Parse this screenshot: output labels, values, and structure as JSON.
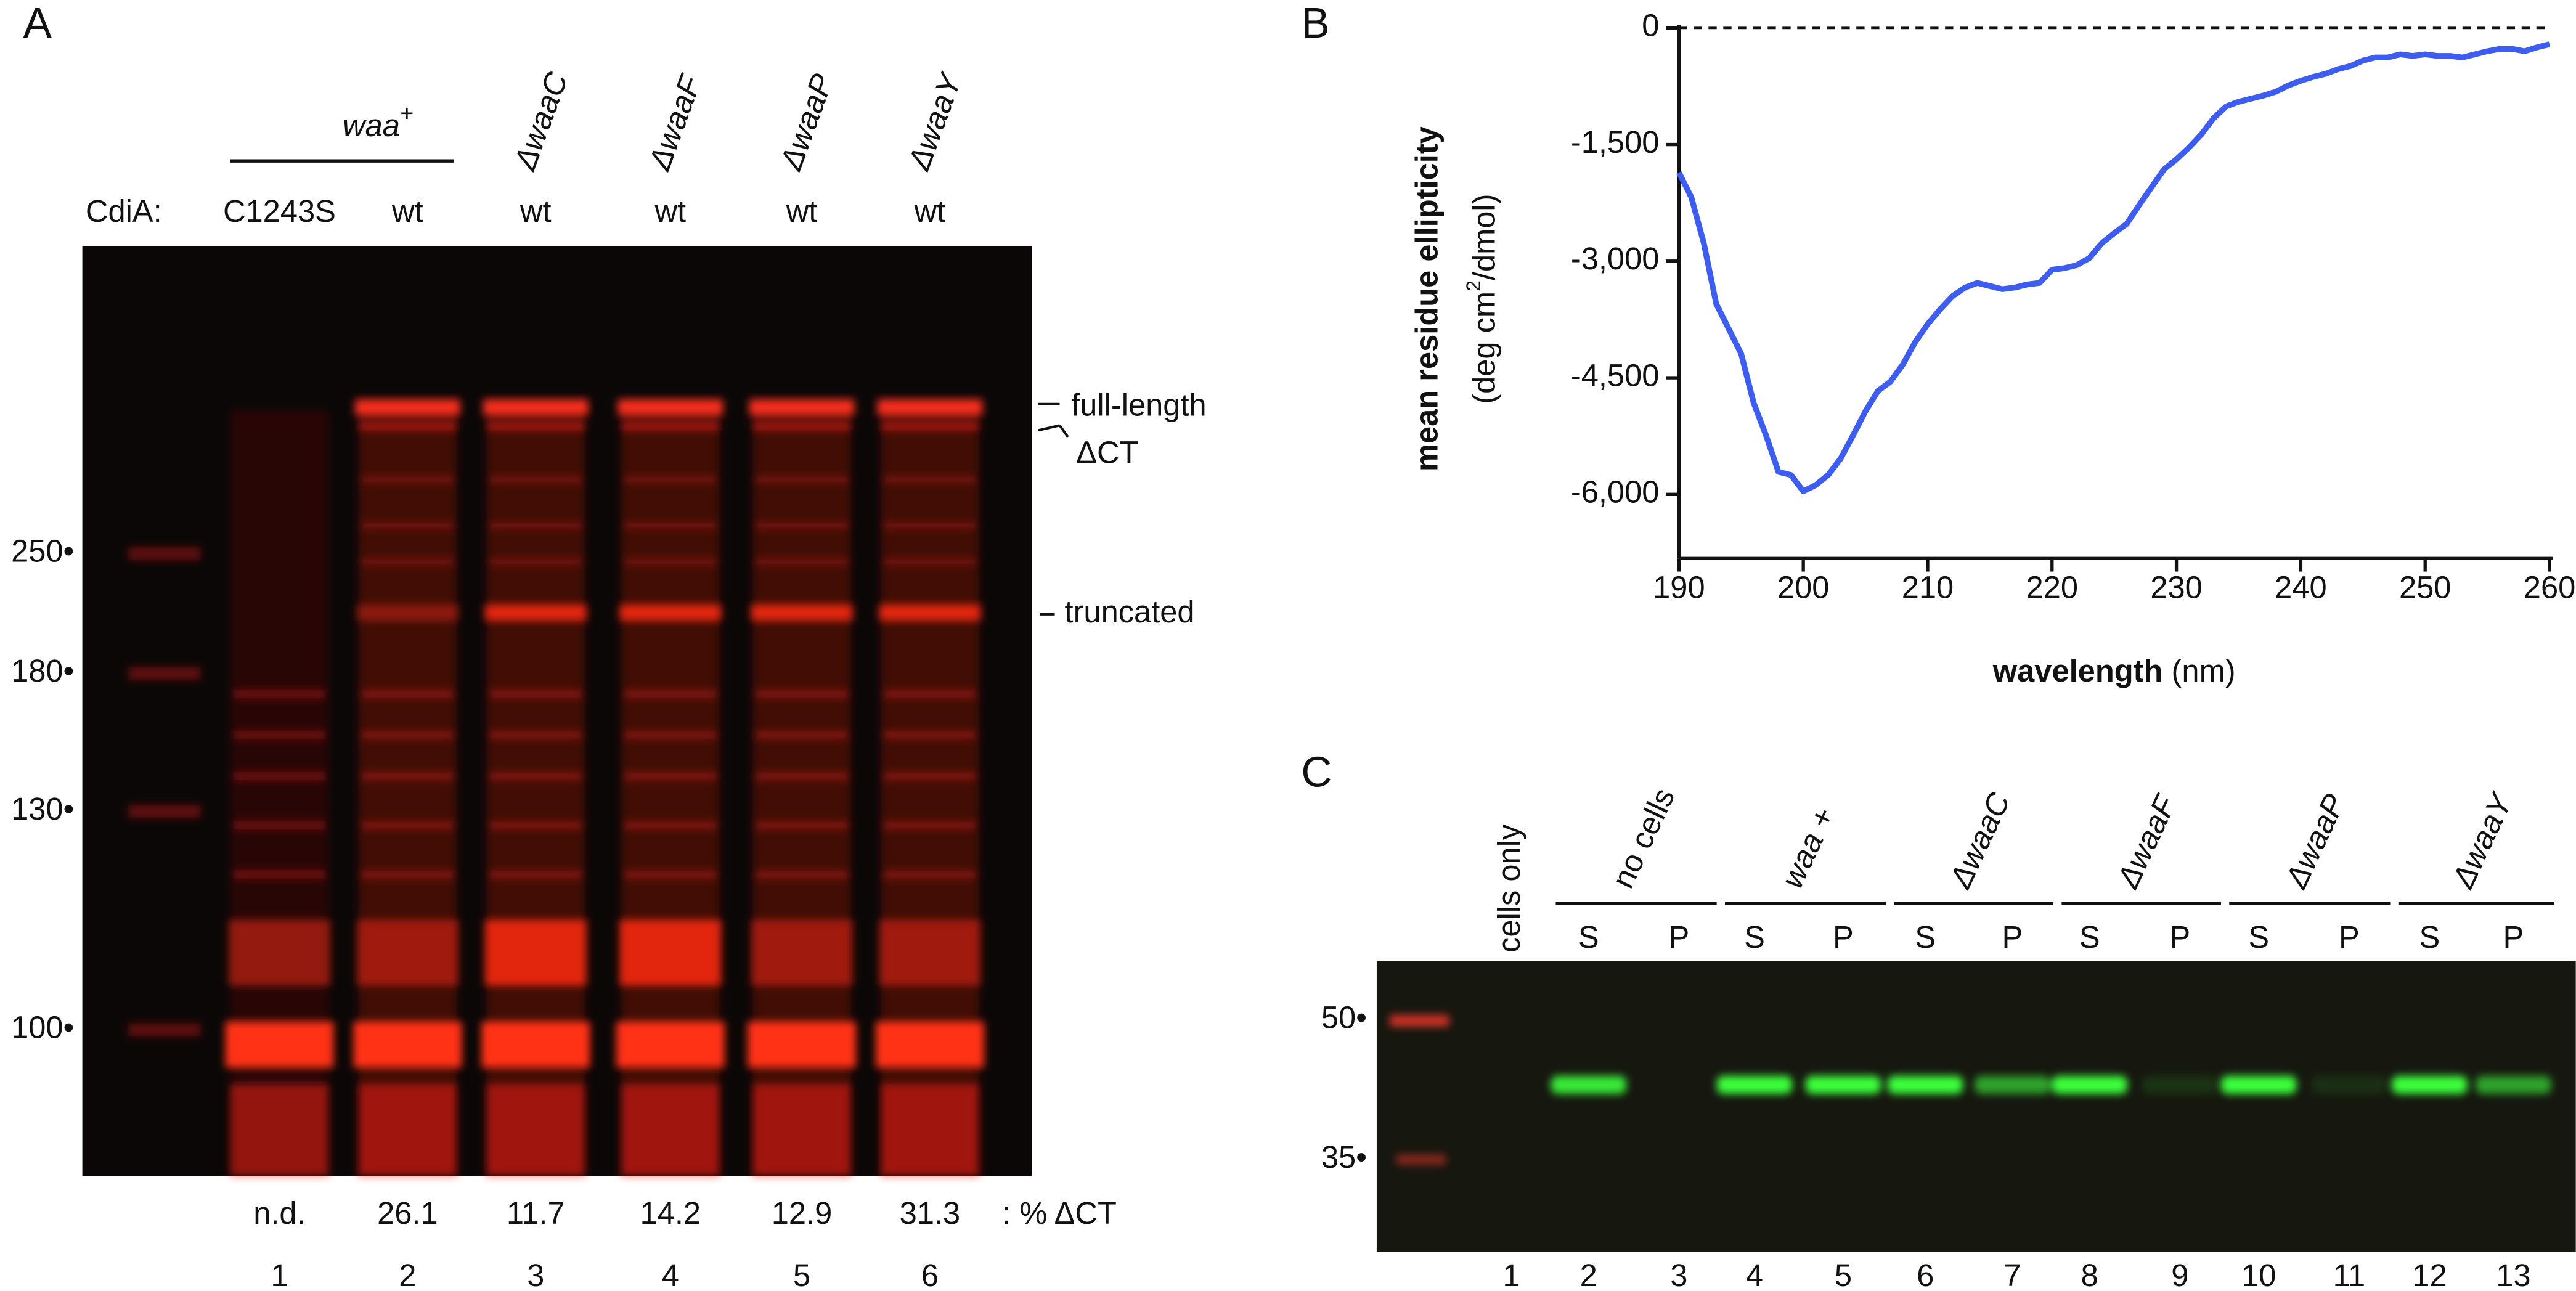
{
  "panel_labels": [
    "A",
    "B",
    "C"
  ],
  "panel_a": {
    "strain_label": "waa",
    "strain_sup": "+",
    "row_label": "CdiA:",
    "cdia": [
      "C1243S",
      "wt",
      "wt",
      "wt",
      "wt",
      "wt"
    ],
    "genotypes": [
      "ΔwaaC",
      "ΔwaaF",
      "ΔwaaP",
      "ΔwaaY"
    ],
    "markers": [
      "250•",
      "180•",
      "130•",
      "100•"
    ],
    "band_labels": [
      "full-length",
      "ΔCT",
      "truncated"
    ],
    "percent_ct": [
      "n.d.",
      "26.1",
      "11.7",
      "14.2",
      "12.9",
      "31.3"
    ],
    "percent_label": ": % ΔCT",
    "lanes": [
      "1",
      "2",
      "3",
      "4",
      "5",
      "6"
    ]
  },
  "chart_data": {
    "type": "line",
    "x_label": "wavelength",
    "x_unit": "(nm)",
    "y_label": "mean residue ellipticity",
    "y_unit_pre": "(deg cm",
    "y_unit_sup": "2",
    "y_unit_post": "/dmol)",
    "color": "#3d5cf0",
    "reference_line": 0,
    "xlim": [
      190,
      260
    ],
    "xticks": [
      190,
      200,
      210,
      220,
      230,
      240,
      250,
      260
    ],
    "ylim": [
      -6750,
      0
    ],
    "yticks": [
      0,
      {
        "value": -1500,
        "label": "-1,500"
      },
      {
        "value": -3000,
        "label": "-3,000"
      },
      {
        "value": -4500,
        "label": "-4,500"
      },
      {
        "value": -6000,
        "label": "-6,000"
      }
    ],
    "x": [
      190,
      191,
      192,
      193,
      194,
      195,
      196,
      197,
      198,
      199,
      200,
      201,
      202,
      203,
      204,
      205,
      206,
      207,
      208,
      209,
      210,
      211,
      212,
      213,
      214,
      215,
      216,
      217,
      218,
      219,
      220,
      221,
      222,
      223,
      224,
      225,
      226,
      227,
      228,
      229,
      230,
      231,
      232,
      233,
      234,
      235,
      236,
      237,
      238,
      239,
      240,
      241,
      242,
      243,
      244,
      245,
      246,
      247,
      248,
      249,
      250,
      251,
      252,
      253,
      254,
      255,
      256,
      257,
      258,
      259,
      260
    ],
    "values": [
      -1860,
      -2180,
      -2770,
      -3550,
      -3870,
      -4190,
      -4820,
      -5240,
      -5710,
      -5750,
      -5960,
      -5880,
      -5750,
      -5540,
      -5240,
      -4930,
      -4670,
      -4550,
      -4330,
      -4040,
      -3810,
      -3620,
      -3450,
      -3340,
      -3280,
      -3320,
      -3360,
      -3340,
      -3300,
      -3280,
      -3110,
      -3090,
      -3050,
      -2960,
      -2770,
      -2640,
      -2520,
      -2280,
      -2050,
      -1820,
      -1690,
      -1540,
      -1370,
      -1160,
      -1010,
      -950,
      -910,
      -870,
      -820,
      -740,
      -680,
      -630,
      -590,
      -530,
      -490,
      -420,
      -380,
      -380,
      -340,
      -360,
      -340,
      -360,
      -360,
      -380,
      -340,
      -300,
      -270,
      -270,
      -300,
      -250,
      -210
    ]
  },
  "panel_c": {
    "cells_only": "cells only",
    "groups": [
      "no cells",
      "waa +",
      "ΔwaaC",
      "ΔwaaF",
      "ΔwaaP",
      "ΔwaaY"
    ],
    "fractions": [
      "S",
      "P",
      "S",
      "P",
      "S",
      "P",
      "S",
      "P",
      "S",
      "P",
      "S",
      "P"
    ],
    "markers": [
      "50•",
      "35•"
    ],
    "lanes": [
      "1",
      "2",
      "3",
      "4",
      "5",
      "6",
      "7",
      "8",
      "9",
      "10",
      "11",
      "12",
      "13"
    ]
  }
}
